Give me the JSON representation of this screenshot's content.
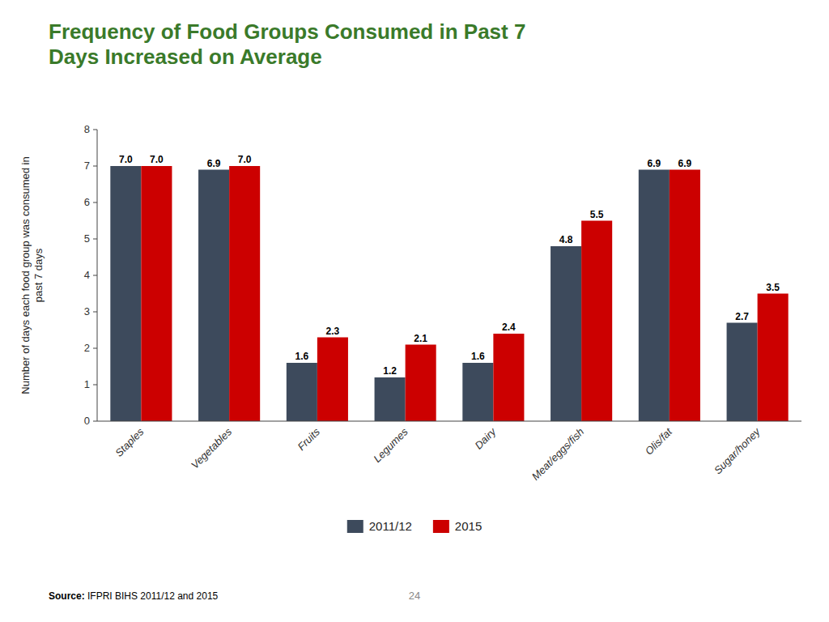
{
  "chart_data": {
    "type": "bar",
    "title": "Frequency of Food Groups Consumed in Past 7\nDays Increased on Average",
    "ylabel": "Number of days each food group was consumed in\npast 7 days",
    "categories": [
      "Staples",
      "Vegetables",
      "Fruits",
      "Legumes",
      "Dairy",
      "Meat/eggs/fish",
      "Olis/fat",
      "Sugar/honey"
    ],
    "series": [
      {
        "name": "2011/12",
        "color": "#3d4a5c",
        "values": [
          7.0,
          6.9,
          1.6,
          1.2,
          1.6,
          4.8,
          6.9,
          2.7
        ],
        "value_labels": [
          "7.0",
          "6.9",
          "1.6",
          "1.2",
          "1.6",
          "4.8",
          "6.9",
          "2.7"
        ]
      },
      {
        "name": "2015",
        "color": "#cc0000",
        "values": [
          7.0,
          7.0,
          2.3,
          2.1,
          2.4,
          5.5,
          6.9,
          3.5
        ],
        "value_labels": [
          "7.0",
          "7.0",
          "2.3",
          "2.1",
          "2.4",
          "5.5",
          "6.9",
          "3.5"
        ]
      }
    ],
    "ylim": [
      0,
      8
    ],
    "yticks": [
      0,
      1,
      2,
      3,
      4,
      5,
      6,
      7,
      8
    ],
    "grid": false,
    "legend": "bottom",
    "data_labels": true,
    "annotations": [
      "Source: IFPRI BIHS 2011/12 and 2015",
      "24"
    ]
  }
}
